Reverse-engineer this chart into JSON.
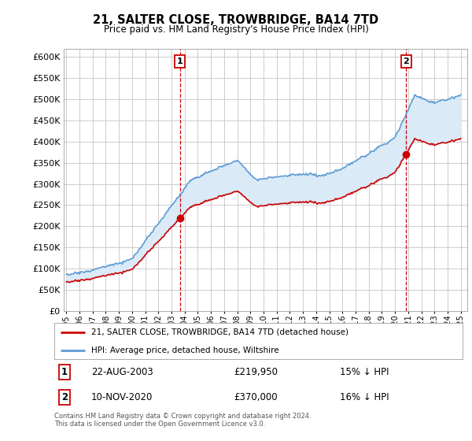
{
  "title": "21, SALTER CLOSE, TROWBRIDGE, BA14 7TD",
  "subtitle": "Price paid vs. HM Land Registry's House Price Index (HPI)",
  "legend_line1": "21, SALTER CLOSE, TROWBRIDGE, BA14 7TD (detached house)",
  "legend_line2": "HPI: Average price, detached house, Wiltshire",
  "transaction1_date": "22-AUG-2003",
  "transaction1_price": "£219,950",
  "transaction1_info": "15% ↓ HPI",
  "transaction1_year": 2003.64,
  "transaction1_value": 219950,
  "transaction2_date": "10-NOV-2020",
  "transaction2_price": "£370,000",
  "transaction2_info": "16% ↓ HPI",
  "transaction2_year": 2020.86,
  "transaction2_value": 370000,
  "footer": "Contains HM Land Registry data © Crown copyright and database right 2024.\nThis data is licensed under the Open Government Licence v3.0.",
  "hpi_color": "#5b9bd5",
  "hpi_fill_color": "#dbeaf7",
  "price_color": "#cc0000",
  "vline_color": "#cc0000",
  "background_color": "#ffffff",
  "grid_color": "#cccccc",
  "ylim": [
    0,
    620000
  ],
  "yticks": [
    0,
    50000,
    100000,
    150000,
    200000,
    250000,
    300000,
    350000,
    400000,
    450000,
    500000,
    550000,
    600000
  ],
  "xlim_start": 1994.8,
  "xlim_end": 2025.5
}
